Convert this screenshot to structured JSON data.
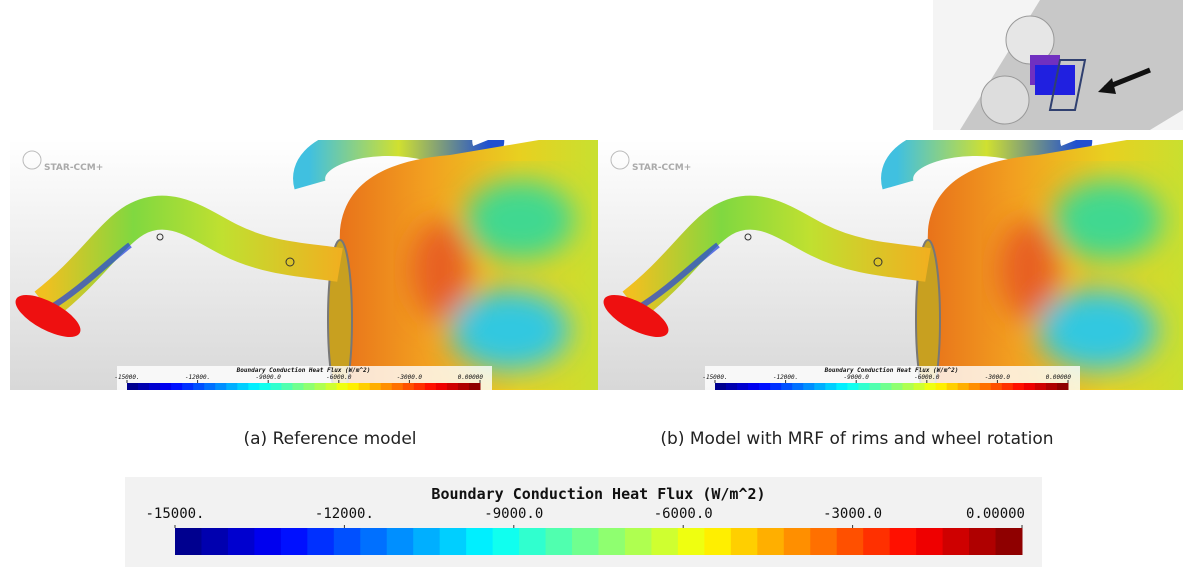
{
  "logo": "STAR-CCM+",
  "captions": [
    "(a) Reference model",
    "(b) Model with MRF of rims and wheel rotation"
  ],
  "colorbar": {
    "title": "Boundary Conduction Heat Flux (W/m^2)",
    "range": [
      -15000,
      0
    ],
    "ticks": [
      {
        "value": -15000,
        "label": "-15000."
      },
      {
        "value": -12000,
        "label": "-12000."
      },
      {
        "value": -9000,
        "label": "-9000.0"
      },
      {
        "value": -6000,
        "label": "-6000.0"
      },
      {
        "value": -3000,
        "label": "-3000.0"
      },
      {
        "value": 0,
        "label": "0.00000"
      }
    ]
  }
}
